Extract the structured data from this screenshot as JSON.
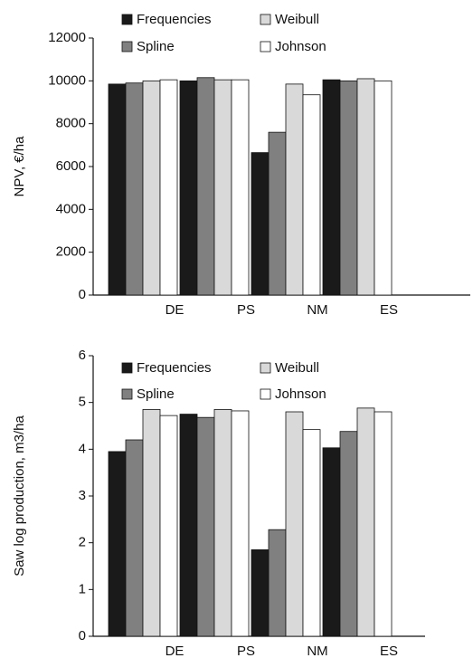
{
  "chart_data": [
    {
      "type": "bar",
      "y_label": "NPV, €/ha",
      "categories": [
        "DE",
        "PS",
        "NM",
        "ES"
      ],
      "series": [
        {
          "name": "Frequencies",
          "color": "#1a1a1a",
          "values": [
            9850,
            10000,
            6650,
            10050
          ]
        },
        {
          "name": "Spline",
          "color": "#808080",
          "values": [
            9900,
            10150,
            7600,
            10000
          ]
        },
        {
          "name": "Weibull",
          "color": "#d9d9d9",
          "values": [
            10000,
            10050,
            9850,
            10100
          ]
        },
        {
          "name": "Johnson",
          "color": "#ffffff",
          "values": [
            10050,
            10050,
            9350,
            10000
          ]
        }
      ],
      "ylim": [
        0,
        12000
      ],
      "yticks": [
        0,
        2000,
        4000,
        6000,
        8000,
        10000,
        12000
      ],
      "grid": false
    },
    {
      "type": "bar",
      "y_label": "Saw log production, m3/ha",
      "categories": [
        "DE",
        "PS",
        "NM",
        "ES"
      ],
      "series": [
        {
          "name": "Frequencies",
          "color": "#1a1a1a",
          "values": [
            3.95,
            4.75,
            1.85,
            4.03
          ]
        },
        {
          "name": "Spline",
          "color": "#808080",
          "values": [
            4.2,
            4.68,
            2.28,
            4.38
          ]
        },
        {
          "name": "Weibull",
          "color": "#d9d9d9",
          "values": [
            4.85,
            4.85,
            4.8,
            4.88
          ]
        },
        {
          "name": "Johnson",
          "color": "#ffffff",
          "values": [
            4.72,
            4.82,
            4.42,
            4.8
          ]
        }
      ],
      "ylim": [
        0,
        6
      ],
      "yticks": [
        0,
        1,
        2,
        3,
        4,
        5,
        6
      ],
      "grid": false
    }
  ]
}
